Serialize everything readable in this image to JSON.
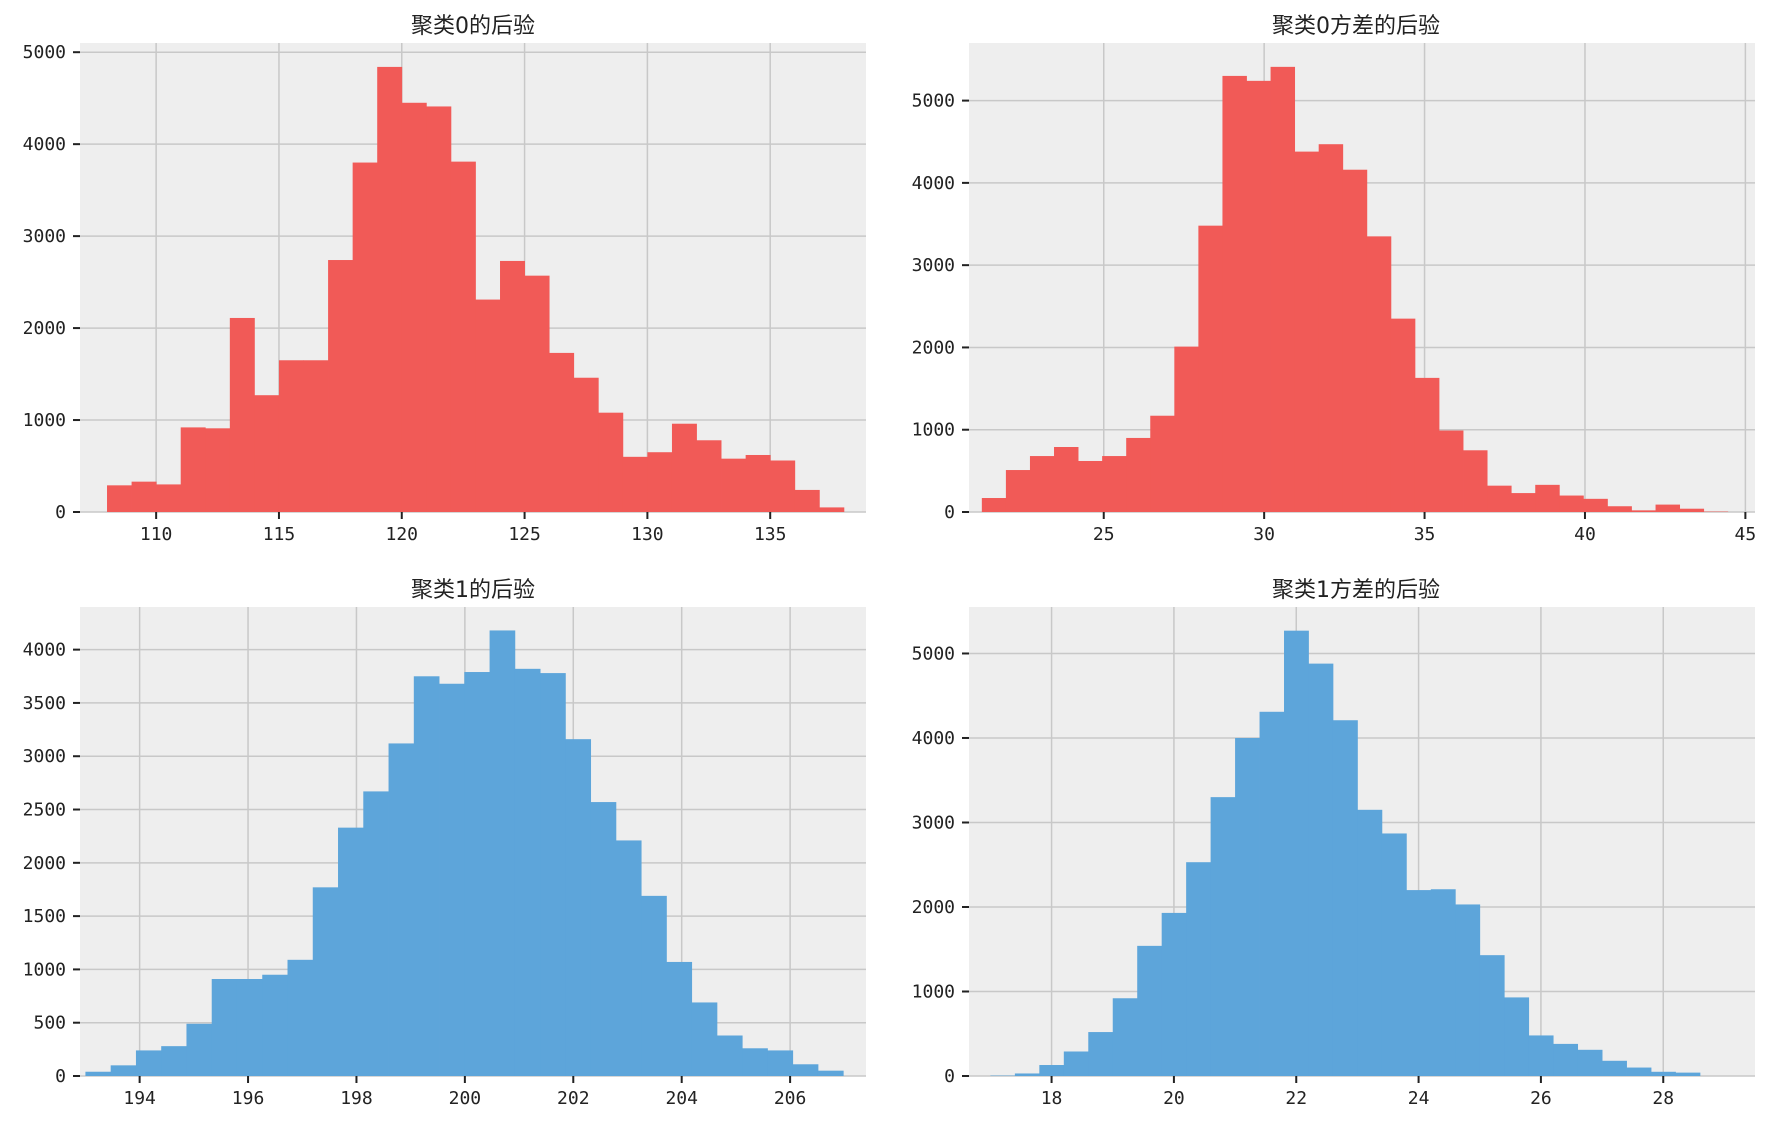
{
  "chart_data": [
    {
      "type": "bar",
      "title": "聚类0的后验",
      "color": "#f15a57",
      "xlim": [
        106.9,
        138.9
      ],
      "ylim": [
        0,
        5100
      ],
      "xticks": [
        110,
        115,
        120,
        125,
        130,
        135
      ],
      "yticks": [
        0,
        1000,
        2000,
        3000,
        4000,
        5000
      ],
      "bin_edges": [
        108.0,
        109.0,
        110.0,
        111.0,
        112.0,
        113.0,
        114.0,
        115.0,
        116.0,
        117.0,
        118.0,
        119.0,
        120.0,
        121.0,
        122.0,
        123.0,
        124.0,
        125.0,
        126.0,
        127.0,
        128.0,
        129.0,
        130.0,
        131.0,
        132.0,
        133.0,
        134.0,
        135.0,
        136.0,
        137.0,
        138.0
      ],
      "values": [
        290,
        330,
        300,
        920,
        910,
        2110,
        1270,
        1650,
        1650,
        2740,
        3800,
        4840,
        4450,
        4410,
        3810,
        2310,
        2730,
        2570,
        1730,
        1460,
        1080,
        600,
        650,
        960,
        780,
        580,
        620,
        560,
        240,
        50
      ]
    },
    {
      "type": "bar",
      "title": "聚类0方差的后验",
      "color": "#f15a57",
      "xlim": [
        20.8,
        45.3
      ],
      "ylim": [
        0,
        5700
      ],
      "xticks": [
        25,
        30,
        35,
        40,
        45
      ],
      "yticks": [
        0,
        1000,
        2000,
        3000,
        4000,
        5000
      ],
      "bin_edges": [
        21.2,
        21.95,
        22.7,
        23.45,
        24.2,
        24.95,
        25.7,
        26.45,
        27.2,
        27.95,
        28.7,
        29.45,
        30.2,
        30.95,
        31.7,
        32.45,
        33.2,
        33.95,
        34.7,
        35.45,
        36.2,
        36.95,
        37.7,
        38.45,
        39.2,
        39.95,
        40.7,
        41.45,
        42.2,
        42.95,
        43.7,
        44.45
      ],
      "values": [
        170,
        510,
        680,
        790,
        620,
        680,
        900,
        1170,
        2010,
        3480,
        5300,
        5240,
        5410,
        4380,
        4470,
        4160,
        3350,
        2350,
        1630,
        990,
        750,
        320,
        230,
        330,
        200,
        160,
        70,
        20,
        90,
        40,
        5
      ]
    },
    {
      "type": "bar",
      "title": "聚类1的后验",
      "color": "#5da5da",
      "xlim": [
        192.9,
        207.4
      ],
      "ylim": [
        0,
        4400
      ],
      "xticks": [
        194,
        196,
        198,
        200,
        202,
        204,
        206
      ],
      "yticks": [
        0,
        500,
        1000,
        1500,
        2000,
        2500,
        3000,
        3500,
        4000
      ],
      "bin_edges": [
        193.0,
        193.466,
        193.932,
        194.398,
        194.864,
        195.33,
        195.796,
        196.262,
        196.728,
        197.194,
        197.66,
        198.126,
        198.592,
        199.058,
        199.524,
        199.99,
        200.456,
        200.922,
        201.388,
        201.854,
        202.32,
        202.786,
        203.252,
        203.718,
        204.184,
        204.65,
        205.116,
        205.582,
        206.048,
        206.514,
        206.98
      ],
      "values": [
        40,
        100,
        240,
        280,
        490,
        910,
        910,
        950,
        1090,
        1770,
        2330,
        2670,
        3120,
        3750,
        3680,
        3790,
        4180,
        3820,
        3780,
        3160,
        2570,
        2210,
        1690,
        1070,
        690,
        380,
        260,
        240,
        110,
        50
      ]
    },
    {
      "type": "bar",
      "title": "聚类1方差的后验",
      "color": "#5da5da",
      "xlim": [
        16.65,
        29.5
      ],
      "ylim": [
        0,
        5550
      ],
      "xticks": [
        18,
        20,
        22,
        24,
        26,
        28
      ],
      "yticks": [
        0,
        1000,
        2000,
        3000,
        4000,
        5000
      ],
      "bin_edges": [
        17.0,
        17.4,
        17.8,
        18.2,
        18.6,
        19.0,
        19.4,
        19.8,
        20.2,
        20.6,
        21.0,
        21.4,
        21.8,
        22.2,
        22.6,
        23.0,
        23.4,
        23.8,
        24.2,
        24.6,
        25.0,
        25.4,
        25.8,
        26.2,
        26.6,
        27.0,
        27.4,
        27.8,
        28.2,
        28.6
      ],
      "values": [
        5,
        30,
        130,
        290,
        520,
        920,
        1540,
        1930,
        2530,
        3300,
        4000,
        4310,
        5270,
        4880,
        4210,
        3150,
        2870,
        2200,
        2210,
        2030,
        1430,
        930,
        480,
        380,
        310,
        180,
        100,
        50,
        40
      ]
    }
  ]
}
